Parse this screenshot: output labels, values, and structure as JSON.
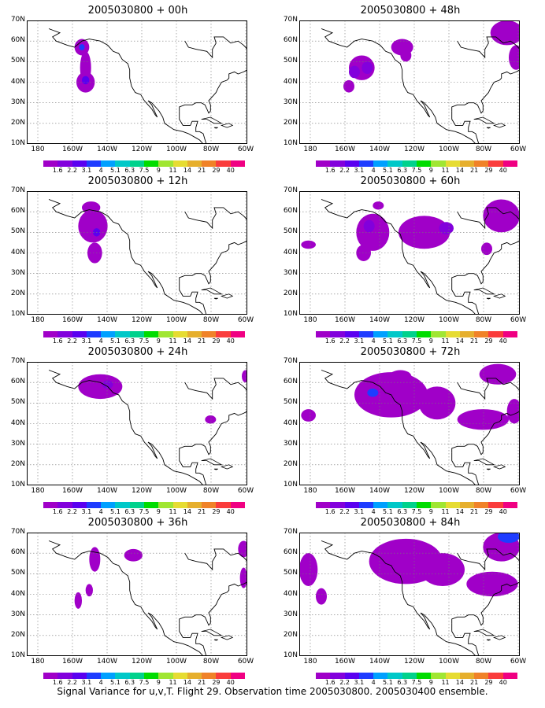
{
  "caption": "Signal Variance for u,v,T. Flight 29. Observation time 2005030800. 2005030400 ensemble.",
  "lat_labels": [
    "70N",
    "60N",
    "50N",
    "40N",
    "30N",
    "20N",
    "10N"
  ],
  "lon_labels": [
    "180",
    "160W",
    "140W",
    "120W",
    "100W",
    "80W",
    "60W"
  ],
  "colorbar": {
    "colors": [
      "#a000c8",
      "#8200dc",
      "#5a00f0",
      "#1e3cff",
      "#00a0ff",
      "#00c8c8",
      "#00d28c",
      "#00dc00",
      "#a0e632",
      "#e6dc32",
      "#e6af2d",
      "#f08228",
      "#fa3c3c",
      "#f00082"
    ],
    "labels": [
      "1.6",
      "2.2",
      "3.1",
      "4",
      "5.1",
      "6.3",
      "7.5",
      "9",
      "11",
      "14",
      "21",
      "29",
      "40"
    ]
  },
  "panels": [
    {
      "id": "p00",
      "title": "2005030800 + 00h",
      "col": 0,
      "row": 0
    },
    {
      "id": "p48",
      "title": "2005030800 + 48h",
      "col": 1,
      "row": 0
    },
    {
      "id": "p12",
      "title": "2005030800 + 12h",
      "col": 0,
      "row": 1
    },
    {
      "id": "p60",
      "title": "2005030800 + 60h",
      "col": 1,
      "row": 1
    },
    {
      "id": "p24",
      "title": "2005030800 + 24h",
      "col": 0,
      "row": 2
    },
    {
      "id": "p72",
      "title": "2005030800 + 72h",
      "col": 1,
      "row": 2
    },
    {
      "id": "p36",
      "title": "2005030800 + 36h",
      "col": 0,
      "row": 3
    },
    {
      "id": "p84",
      "title": "2005030800 + 84h",
      "col": 1,
      "row": 3
    }
  ]
}
